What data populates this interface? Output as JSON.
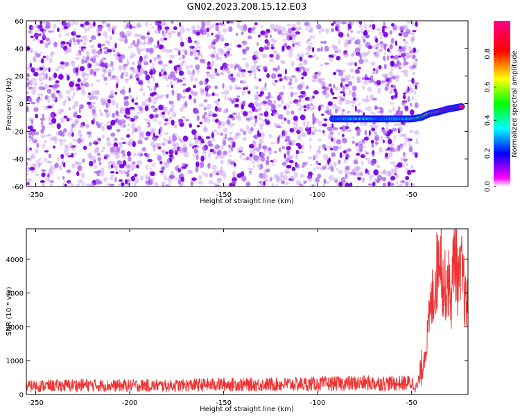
{
  "figure_title": "GN02.2023.208.15.12.E03",
  "chart_data": [
    {
      "type": "heatmap",
      "xlabel": "Height of straight line (km)",
      "ylabel": "Frequency (Hz)",
      "xlim": [
        -255,
        -20
      ],
      "ylim": [
        -60,
        60
      ],
      "xticks": [
        -250,
        -200,
        -150,
        -100,
        -50
      ],
      "yticks": [
        -60,
        -40,
        -20,
        0,
        20,
        40,
        60
      ],
      "colorbar": {
        "label": "Normalized spectral amplitude",
        "range": [
          0,
          1
        ],
        "ticks": [
          0.0,
          0.2,
          0.4,
          0.6,
          0.8
        ],
        "colormap": [
          "#ffffff",
          "#ff00ff",
          "#0000ff",
          "#00ffff",
          "#00ff00",
          "#ffff00",
          "#ff0000",
          "#ff00aa"
        ]
      },
      "noise_region": {
        "x_range": [
          -255,
          -47
        ],
        "y_range": [
          -60,
          60
        ],
        "amplitude_range": [
          0.0,
          0.2
        ]
      },
      "signal_track": [
        {
          "x": -92,
          "y": -11,
          "amplitude": 0.25
        },
        {
          "x": -85,
          "y": -11,
          "amplitude": 0.3
        },
        {
          "x": -78,
          "y": -11,
          "amplitude": 0.35
        },
        {
          "x": -72,
          "y": -11,
          "amplitude": 0.35
        },
        {
          "x": -66,
          "y": -11,
          "amplitude": 0.25
        },
        {
          "x": -56,
          "y": -11,
          "amplitude": 0.3
        },
        {
          "x": -50,
          "y": -11,
          "amplitude": 0.35
        },
        {
          "x": -45,
          "y": -10,
          "amplitude": 0.45
        },
        {
          "x": -40,
          "y": -7,
          "amplitude": 0.65
        },
        {
          "x": -36,
          "y": -6,
          "amplitude": 0.75
        },
        {
          "x": -31,
          "y": -4,
          "amplitude": 0.85
        },
        {
          "x": -27,
          "y": -3,
          "amplitude": 0.9
        },
        {
          "x": -23,
          "y": -2,
          "amplitude": 0.95
        }
      ]
    },
    {
      "type": "line",
      "xlabel": "Height of straight line (km)",
      "ylabel": "SNR (10 * v/v)",
      "xlim": [
        -255,
        -20
      ],
      "ylim": [
        0,
        4900
      ],
      "xticks": [
        -250,
        -200,
        -150,
        -100,
        -50
      ],
      "yticks": [
        0,
        1000,
        2000,
        3000,
        4000
      ],
      "color": "#ee3333",
      "series": [
        {
          "x": [
            -255,
            -240,
            -225,
            -210,
            -195,
            -180,
            -165,
            -150,
            -135,
            -120,
            -105,
            -90,
            -75,
            -65,
            -55,
            -50,
            -47,
            -45,
            -42,
            -40,
            -38,
            -36,
            -35,
            -33,
            -31,
            -29,
            -27,
            -25,
            -23,
            -21,
            -20
          ],
          "y": [
            250,
            260,
            280,
            260,
            270,
            260,
            280,
            300,
            290,
            300,
            310,
            320,
            340,
            330,
            330,
            350,
            200,
            700,
            1500,
            2500,
            3200,
            3800,
            4800,
            3000,
            3500,
            2800,
            4400,
            3200,
            3600,
            2500,
            3100
          ]
        }
      ]
    }
  ]
}
